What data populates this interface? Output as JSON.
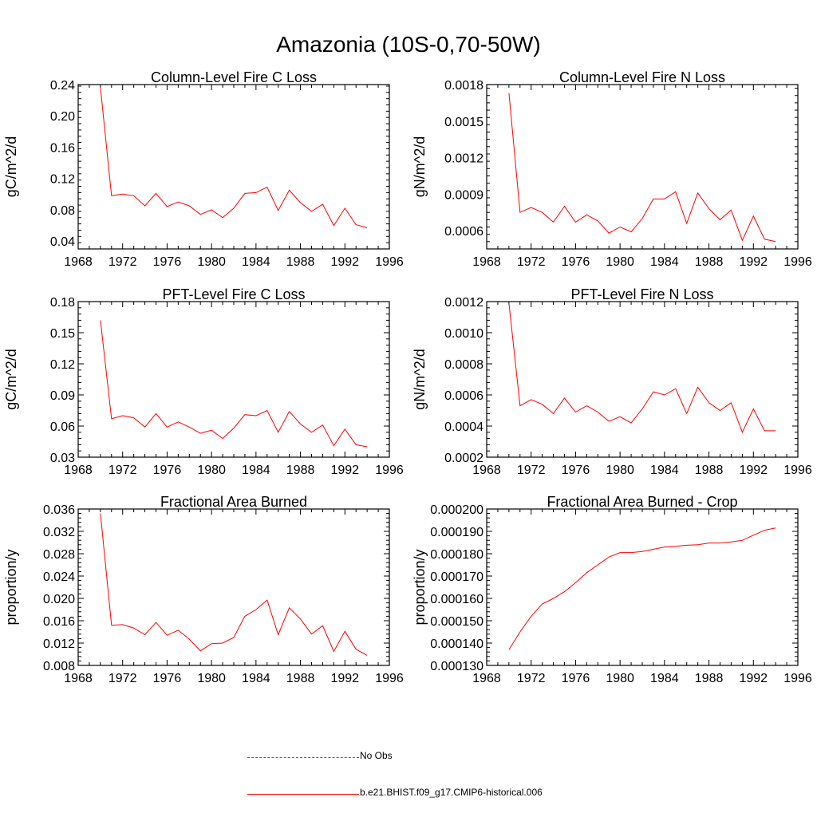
{
  "figure_title": "Amazonia (10S-0,70-50W)",
  "colors": {
    "model": "#ff0000",
    "obs": "#5a5aa8",
    "axis": "#000000"
  },
  "legend": {
    "obs_label": "No Obs",
    "model_label": "b.e21.BHIST.f09_g17.CMIP6-historical.006"
  },
  "chart_data": [
    {
      "type": "line",
      "title": "Column-Level Fire C Loss",
      "xlabel": "",
      "ylabel": "gC/m^2/d",
      "xlim": [
        1968,
        1996
      ],
      "ylim": [
        0.03,
        0.24
      ],
      "xticks": [
        1968,
        1972,
        1976,
        1980,
        1984,
        1988,
        1992,
        1996
      ],
      "yticks": [
        0.04,
        0.08,
        0.12,
        0.16,
        0.2,
        0.24
      ],
      "ytick_labels": [
        "0.04",
        "0.08",
        "0.12",
        "0.16",
        "0.20",
        "0.24"
      ],
      "x": [
        1970,
        1971,
        1972,
        1973,
        1974,
        1975,
        1976,
        1977,
        1978,
        1979,
        1980,
        1981,
        1982,
        1983,
        1984,
        1985,
        1986,
        1987,
        1988,
        1989,
        1990,
        1991,
        1992,
        1993,
        1994
      ],
      "series": [
        {
          "name": "b.e21.BHIST.f09_g17.CMIP6-historical.006",
          "values": [
            0.236,
            0.098,
            0.1,
            0.098,
            0.085,
            0.101,
            0.084,
            0.09,
            0.085,
            0.074,
            0.08,
            0.07,
            0.082,
            0.101,
            0.102,
            0.109,
            0.079,
            0.105,
            0.089,
            0.078,
            0.087,
            0.06,
            0.082,
            0.061,
            0.057
          ]
        }
      ]
    },
    {
      "type": "line",
      "title": "Column-Level Fire N Loss",
      "xlabel": "",
      "ylabel": "gN/m^2/d",
      "xlim": [
        1968,
        1996
      ],
      "ylim": [
        0.00045,
        0.0018
      ],
      "xticks": [
        1968,
        1972,
        1976,
        1980,
        1984,
        1988,
        1992,
        1996
      ],
      "yticks": [
        0.0006,
        0.0009,
        0.0012,
        0.0015,
        0.0018
      ],
      "ytick_labels": [
        "0.0006",
        "0.0009",
        "0.0012",
        "0.0015",
        "0.0018"
      ],
      "x": [
        1970,
        1971,
        1972,
        1973,
        1974,
        1975,
        1976,
        1977,
        1978,
        1979,
        1980,
        1981,
        1982,
        1983,
        1984,
        1985,
        1986,
        1987,
        1988,
        1989,
        1990,
        1991,
        1992,
        1993,
        1994
      ],
      "series": [
        {
          "name": "b.e21.BHIST.f09_g17.CMIP6-historical.006",
          "values": [
            0.00173,
            0.00075,
            0.00079,
            0.00075,
            0.00067,
            0.0008,
            0.00067,
            0.00073,
            0.00068,
            0.00058,
            0.00063,
            0.00059,
            0.0007,
            0.00086,
            0.00086,
            0.00092,
            0.00066,
            0.00091,
            0.00078,
            0.00069,
            0.00077,
            0.00052,
            0.00072,
            0.00053,
            0.00051
          ]
        }
      ]
    },
    {
      "type": "line",
      "title": "PFT-Level Fire C Loss",
      "xlabel": "",
      "ylabel": "gC/m^2/d",
      "xlim": [
        1968,
        1996
      ],
      "ylim": [
        0.03,
        0.18
      ],
      "xticks": [
        1968,
        1972,
        1976,
        1980,
        1984,
        1988,
        1992,
        1996
      ],
      "yticks": [
        0.03,
        0.06,
        0.09,
        0.12,
        0.15,
        0.18
      ],
      "ytick_labels": [
        "0.03",
        "0.06",
        "0.09",
        "0.12",
        "0.15",
        "0.18"
      ],
      "x": [
        1970,
        1971,
        1972,
        1973,
        1974,
        1975,
        1976,
        1977,
        1978,
        1979,
        1980,
        1981,
        1982,
        1983,
        1984,
        1985,
        1986,
        1987,
        1988,
        1989,
        1990,
        1991,
        1992,
        1993,
        1994
      ],
      "series": [
        {
          "name": "b.e21.BHIST.f09_g17.CMIP6-historical.006",
          "values": [
            0.162,
            0.067,
            0.07,
            0.068,
            0.059,
            0.072,
            0.059,
            0.064,
            0.059,
            0.053,
            0.056,
            0.048,
            0.058,
            0.071,
            0.07,
            0.075,
            0.054,
            0.074,
            0.062,
            0.054,
            0.061,
            0.041,
            0.057,
            0.042,
            0.04
          ]
        }
      ]
    },
    {
      "type": "line",
      "title": "PFT-Level Fire N Loss",
      "xlabel": "",
      "ylabel": "gN/m^2/d",
      "xlim": [
        1968,
        1996
      ],
      "ylim": [
        0.0002,
        0.0012
      ],
      "xticks": [
        1968,
        1972,
        1976,
        1980,
        1984,
        1988,
        1992,
        1996
      ],
      "yticks": [
        0.0002,
        0.0004,
        0.0006,
        0.0008,
        0.001,
        0.0012
      ],
      "ytick_labels": [
        "0.0002",
        "0.0004",
        "0.0006",
        "0.0008",
        "0.0010",
        "0.0012"
      ],
      "x": [
        1970,
        1971,
        1972,
        1973,
        1974,
        1975,
        1976,
        1977,
        1978,
        1979,
        1980,
        1981,
        1982,
        1983,
        1984,
        1985,
        1986,
        1987,
        1988,
        1989,
        1990,
        1991,
        1992,
        1993,
        1994
      ],
      "series": [
        {
          "name": "b.e21.BHIST.f09_g17.CMIP6-historical.006",
          "values": [
            0.00119,
            0.00053,
            0.00057,
            0.00054,
            0.00048,
            0.00058,
            0.00049,
            0.00053,
            0.00049,
            0.00043,
            0.00046,
            0.00042,
            0.00051,
            0.00062,
            0.0006,
            0.00064,
            0.00048,
            0.00065,
            0.00055,
            0.0005,
            0.00055,
            0.00036,
            0.00051,
            0.00037,
            0.00037
          ]
        }
      ]
    },
    {
      "type": "line",
      "title": "Fractional Area Burned",
      "xlabel": "",
      "ylabel": "proportion/y",
      "xlim": [
        1968,
        1996
      ],
      "ylim": [
        0.008,
        0.036
      ],
      "xticks": [
        1968,
        1972,
        1976,
        1980,
        1984,
        1988,
        1992,
        1996
      ],
      "yticks": [
        0.008,
        0.012,
        0.016,
        0.02,
        0.024,
        0.028,
        0.032,
        0.036
      ],
      "ytick_labels": [
        "0.008",
        "0.012",
        "0.016",
        "0.020",
        "0.024",
        "0.028",
        "0.032",
        "0.036"
      ],
      "x": [
        1970,
        1971,
        1972,
        1973,
        1974,
        1975,
        1976,
        1977,
        1978,
        1979,
        1980,
        1981,
        1982,
        1983,
        1984,
        1985,
        1986,
        1987,
        1988,
        1989,
        1990,
        1991,
        1992,
        1993,
        1994
      ],
      "series": [
        {
          "name": "b.e21.BHIST.f09_g17.CMIP6-historical.006",
          "values": [
            0.0352,
            0.0152,
            0.0153,
            0.0147,
            0.0135,
            0.0157,
            0.0134,
            0.0143,
            0.0127,
            0.0106,
            0.0119,
            0.012,
            0.013,
            0.0168,
            0.018,
            0.0197,
            0.0135,
            0.0183,
            0.0163,
            0.0136,
            0.0151,
            0.0105,
            0.0141,
            0.0109,
            0.0098
          ]
        }
      ]
    },
    {
      "type": "line",
      "title": "Fractional Area Burned - Crop",
      "xlabel": "",
      "ylabel": "proportion/y",
      "xlim": [
        1968,
        1996
      ],
      "ylim": [
        0.00013,
        0.0002
      ],
      "xticks": [
        1968,
        1972,
        1976,
        1980,
        1984,
        1988,
        1992,
        1996
      ],
      "yticks": [
        0.00013,
        0.00014,
        0.00015,
        0.00016,
        0.00017,
        0.00018,
        0.00019,
        0.0002
      ],
      "ytick_labels": [
        "0.000130",
        "0.000140",
        "0.000150",
        "0.000160",
        "0.000170",
        "0.000180",
        "0.000190",
        "0.000200"
      ],
      "x": [
        1970,
        1971,
        1972,
        1973,
        1974,
        1975,
        1976,
        1977,
        1978,
        1979,
        1980,
        1981,
        1982,
        1983,
        1984,
        1985,
        1986,
        1987,
        1988,
        1989,
        1990,
        1991,
        1992,
        1993,
        1994
      ],
      "series": [
        {
          "name": "b.e21.BHIST.f09_g17.CMIP6-historical.006",
          "values": [
            0.000137,
            0.000145,
            0.000152,
            0.0001575,
            0.00016,
            0.000163,
            0.000167,
            0.0001715,
            0.000175,
            0.0001785,
            0.0001805,
            0.0001805,
            0.000181,
            0.000182,
            0.000183,
            0.0001833,
            0.0001838,
            0.000184,
            0.0001848,
            0.0001848,
            0.0001853,
            0.000186,
            0.0001883,
            0.0001905,
            0.0001915
          ]
        }
      ]
    }
  ]
}
